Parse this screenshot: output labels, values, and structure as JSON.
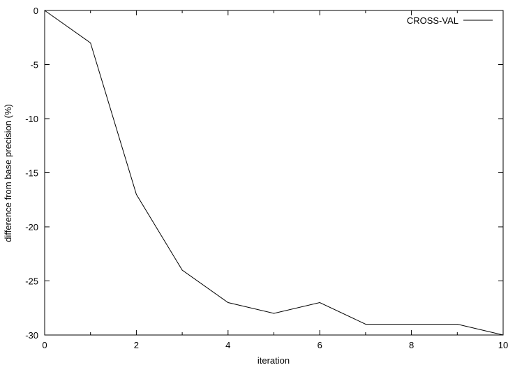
{
  "chart_data": {
    "type": "line",
    "title": "",
    "xlabel": "iteration",
    "ylabel": "difference from base precision (%)",
    "xlim": [
      0,
      10
    ],
    "ylim": [
      -30,
      0
    ],
    "xticks": [
      "0",
      "2",
      "4",
      "6",
      "8",
      "10"
    ],
    "yticks": [
      "0",
      "-5",
      "-10",
      "-15",
      "-20",
      "-25",
      "-30"
    ],
    "grid": false,
    "legend_position": "top-right",
    "series": [
      {
        "name": "CROSS-VAL",
        "color": "#000000",
        "x": [
          0,
          1,
          2,
          3,
          4,
          5,
          6,
          7,
          8,
          9,
          10
        ],
        "y": [
          0,
          -3,
          -17,
          -24,
          -27,
          -28,
          -27,
          -29,
          -29,
          -29,
          -30
        ]
      }
    ]
  }
}
